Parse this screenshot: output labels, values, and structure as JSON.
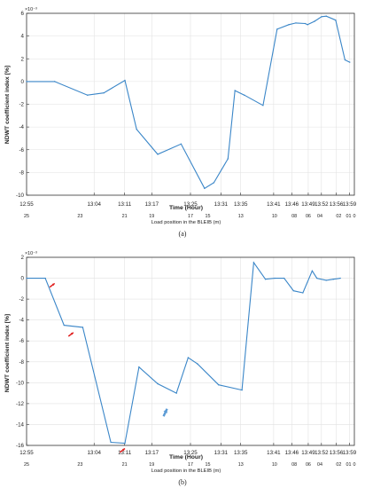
{
  "chart_data": [
    {
      "type": "line",
      "panel_label": "(a)",
      "ylabel": "NDWT coefficient index [%]",
      "xlabel": "Time (Hour)",
      "x2label": "Load position in the BLEIB (m)",
      "y_exponent": "×10⁻³",
      "ylim": [
        -10,
        6
      ],
      "yticks": [
        6,
        4,
        2,
        0,
        -2,
        -4,
        -6,
        -8,
        -10
      ],
      "grid": true,
      "time_ticks": [
        "12:55",
        "13:04",
        "13:11",
        "13:17",
        "13:25",
        "13:31",
        "13:35",
        "13:41",
        "13:46",
        "13:49",
        "13:52",
        "13:56",
        "13:59"
      ],
      "position_ticks": [
        "25",
        "23",
        "21",
        "19",
        "17",
        "15",
        "13",
        "10",
        "08",
        "06",
        "04",
        "02",
        "01",
        "0"
      ],
      "series": [
        {
          "color": "#3a86c8",
          "x": [
            0,
            1.2,
            2.6,
            3.3,
            4.2,
            4.7,
            5.6,
            6.6,
            7.6,
            8.0,
            8.6,
            8.9,
            9.3,
            10.1,
            10.7,
            11.2,
            11.5,
            11.9,
            12.0,
            12.3,
            12.6,
            12.8,
            13.2,
            13.6,
            13.8
          ],
          "y": [
            0.0,
            0.0,
            -1.2,
            -1.0,
            0.1,
            -4.2,
            -6.4,
            -5.5,
            -9.4,
            -8.9,
            -6.8,
            -0.8,
            -1.2,
            -2.1,
            4.6,
            5.0,
            5.15,
            5.1,
            5.0,
            5.3,
            5.7,
            5.75,
            5.4,
            1.9,
            1.7
          ]
        }
      ]
    },
    {
      "type": "line",
      "panel_label": "(b)",
      "ylabel": "NDWT coefficient index [%]",
      "xlabel": "Time (Hour)",
      "x2label": "Load position in the BLEIB (m)",
      "y_exponent": "×10⁻³",
      "ylim": [
        -16,
        2
      ],
      "yticks": [
        2,
        0,
        -2,
        -4,
        -6,
        -8,
        -10,
        -12,
        -14,
        -16
      ],
      "grid": true,
      "time_ticks": [
        "12:55",
        "13:04",
        "13:11",
        "13:17",
        "13:25",
        "13:31",
        "13:35",
        "13:41",
        "13:46",
        "13:49",
        "13:52",
        "13:56",
        "13:59"
      ],
      "position_ticks": [
        "25",
        "23",
        "21",
        "19",
        "17",
        "15",
        "13",
        "10",
        "08",
        "06",
        "04",
        "02",
        "01",
        "0"
      ],
      "series": [
        {
          "color": "#3a86c8",
          "x": [
            0,
            0.8,
            1.6,
            2.4,
            3.6,
            4.2,
            4.8,
            5.6,
            6.4,
            6.9,
            7.3,
            8.2,
            9.2,
            9.7,
            10.2,
            10.6,
            11.0,
            11.4,
            11.8,
            12.2,
            12.4,
            12.8,
            13.1,
            13.4
          ],
          "y": [
            0.0,
            0.0,
            -4.5,
            -4.7,
            -15.7,
            -15.8,
            -8.5,
            -10.1,
            -11.0,
            -7.6,
            -8.2,
            -10.2,
            -10.7,
            1.5,
            -0.1,
            0.0,
            0.0,
            -1.2,
            -1.4,
            0.7,
            0.0,
            -0.2,
            -0.1,
            0.0
          ]
        }
      ],
      "annotations": [
        {
          "kind": "arrow",
          "color": "#e02020",
          "x": 1.2,
          "y": -0.5
        },
        {
          "kind": "arrow",
          "color": "#e02020",
          "x": 2.0,
          "y": -5.2
        },
        {
          "kind": "arrow",
          "color": "#e02020",
          "x": 4.2,
          "y": -16.3
        },
        {
          "kind": "arrow",
          "color": "#5b9bd5",
          "x": 6.0,
          "y": -12.5
        }
      ]
    }
  ]
}
